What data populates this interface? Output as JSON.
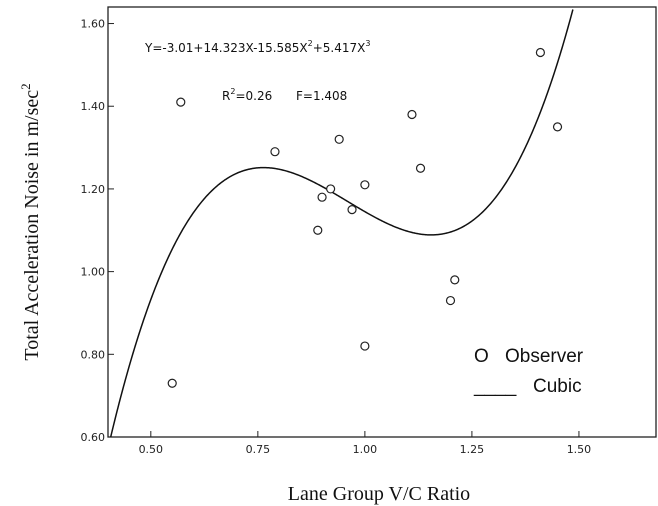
{
  "chart_data": {
    "type": "scatter",
    "xlabel": "Lane Group V/C Ratio",
    "ylabel_main": "Total Acceleration Noise in m/sec",
    "ylabel_sup": "2",
    "xlim": [
      0.4,
      1.68
    ],
    "ylim": [
      0.6,
      1.64
    ],
    "x_ticks": [
      0.5,
      0.75,
      1.0,
      1.25,
      1.5
    ],
    "x_tick_labels": [
      "0.50",
      "0.75",
      "1.00",
      "1.25",
      "1.50"
    ],
    "y_ticks": [
      0.6,
      0.8,
      1.0,
      1.2,
      1.4,
      1.6
    ],
    "y_tick_labels": [
      "0.60",
      "0.80",
      "1.00",
      "1.20",
      "1.40",
      "1.60"
    ],
    "equation": {
      "y_prefix": "Y=-3.01+14.323X-15.585X",
      "sup1": "2",
      "middle": "+5.417X",
      "sup2": "3"
    },
    "stats": {
      "r_prefix": "R",
      "r_sup": "2",
      "r_value": "=0.26",
      "f_text": "F=1.408"
    },
    "cubic_coefficients": [
      -3.01,
      14.323,
      -15.585,
      5.417
    ],
    "series": [
      {
        "name": "Observer",
        "type": "scatter",
        "points": [
          [
            0.55,
            0.73
          ],
          [
            0.57,
            1.41
          ],
          [
            0.79,
            1.29
          ],
          [
            0.89,
            1.1
          ],
          [
            0.9,
            1.18
          ],
          [
            0.92,
            1.2
          ],
          [
            0.94,
            1.32
          ],
          [
            0.97,
            1.15
          ],
          [
            1.0,
            1.21
          ],
          [
            1.0,
            0.82
          ],
          [
            1.11,
            1.38
          ],
          [
            1.13,
            1.25
          ],
          [
            1.2,
            0.93
          ],
          [
            1.21,
            0.98
          ],
          [
            1.41,
            1.53
          ],
          [
            1.45,
            1.35
          ]
        ]
      },
      {
        "name": "Cubic",
        "type": "line"
      }
    ],
    "legend": {
      "placement": "bottom-right",
      "observer_symbol": "O",
      "observer_label": "Observer",
      "cubic_symbol": "____",
      "cubic_label": "Cubic"
    }
  }
}
